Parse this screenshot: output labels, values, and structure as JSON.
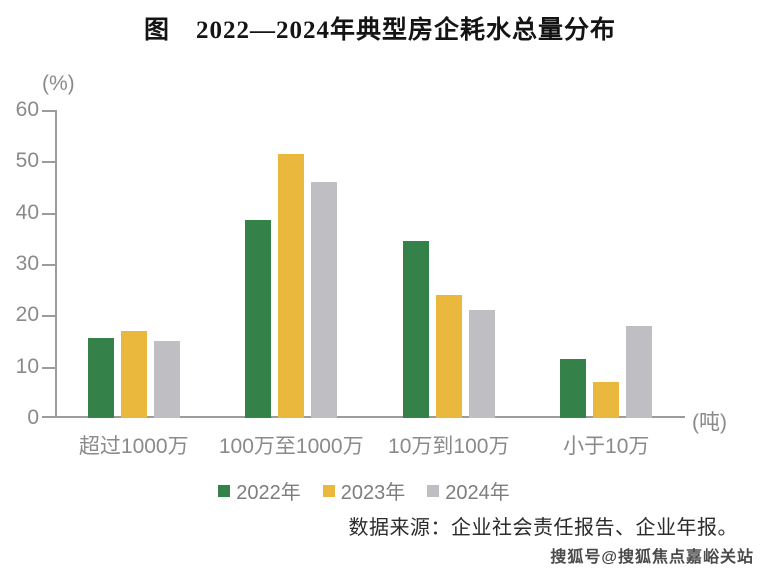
{
  "title": "图　2022—2024年典型房企耗水总量分布",
  "y_axis": {
    "unit": "(%)",
    "ticks": [
      0,
      10,
      20,
      30,
      40,
      50,
      60
    ],
    "max": 60
  },
  "x_axis": {
    "unit": "(吨)",
    "categories": [
      "超过1000万",
      "100万至1000万",
      "10万到100万",
      "小于10万"
    ]
  },
  "legend": [
    {
      "label": "2022年",
      "color": "#348149"
    },
    {
      "label": "2023年",
      "color": "#EAB83C"
    },
    {
      "label": "2024年",
      "color": "#BFBFC3"
    }
  ],
  "source": "数据来源：企业社会责任报告、企业年报。",
  "watermark": "搜狐号@搜狐焦点嘉峪关站",
  "colors": {
    "axis": "#9c9c9c",
    "tick_label": "#8a8a8a"
  },
  "chart_data": {
    "type": "bar",
    "title": "图　2022—2024年典型房企耗水总量分布",
    "categories": [
      "超过1000万",
      "100万至1000万",
      "10万到100万",
      "小于10万"
    ],
    "series": [
      {
        "name": "2022年",
        "color": "#348149",
        "values": [
          15.5,
          38.5,
          34.5,
          11.5
        ]
      },
      {
        "name": "2023年",
        "color": "#EAB83C",
        "values": [
          17,
          51.5,
          24,
          7
        ]
      },
      {
        "name": "2024年",
        "color": "#BFBFC3",
        "values": [
          15,
          46,
          21,
          18
        ]
      }
    ],
    "xlabel": "(吨)",
    "ylabel": "(%)",
    "ylim": [
      0,
      60
    ],
    "grid": false,
    "legend_position": "bottom"
  }
}
